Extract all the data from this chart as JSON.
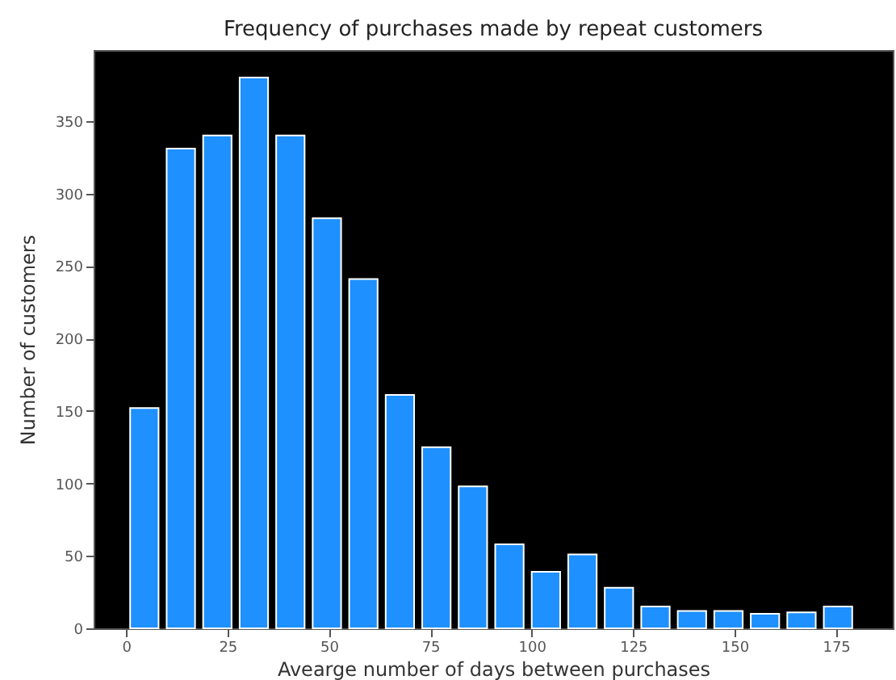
{
  "chart_data": {
    "type": "histogram",
    "title": "Frequency of purchases made by repeat customers",
    "xlabel": "Avearge number of days between purchases",
    "ylabel": "Number of customers",
    "bins": [
      0,
      9,
      18,
      27,
      36,
      45,
      54,
      63,
      72,
      81,
      90,
      99,
      108,
      117,
      126,
      135,
      144,
      153,
      162,
      171,
      180
    ],
    "values": [
      152,
      331,
      340,
      380,
      340,
      283,
      241,
      161,
      125,
      98,
      58,
      39,
      51,
      28,
      15,
      12,
      12,
      10,
      11,
      15
    ],
    "color": "#1e90ff",
    "xlim": [
      -8,
      189
    ],
    "xticks": [
      0,
      25,
      50,
      75,
      100,
      125,
      150,
      175
    ],
    "ylim": [
      0,
      399
    ],
    "yticks": [
      0,
      50,
      100,
      150,
      200,
      250,
      300,
      350
    ],
    "grid": false
  }
}
